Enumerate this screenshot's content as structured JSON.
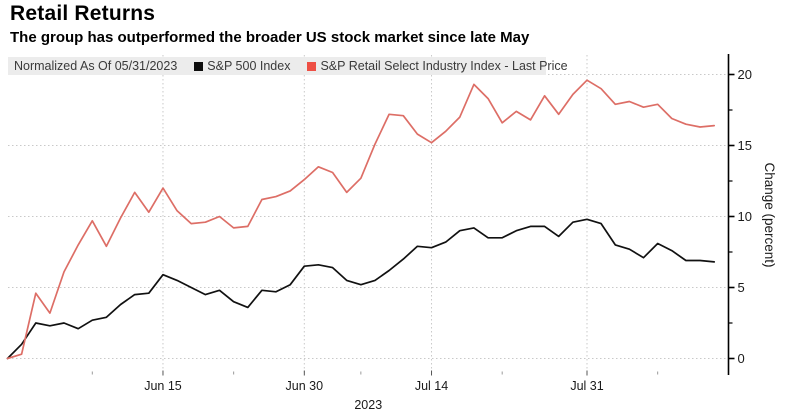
{
  "chart_data": {
    "type": "line",
    "title": "Retail Returns",
    "subtitle": "The group has outperformed the broader US stock market since late May",
    "legend_note": "Normalized As Of 05/31/2023",
    "legend_position": "top",
    "grid": "dotted",
    "xlabel": "2023",
    "ylabel": "Change (percent)",
    "ylim": [
      -1.2,
      21.5
    ],
    "y_ticks": [
      0,
      5,
      10,
      15,
      20
    ],
    "y_minor_ticks": [
      2.5,
      7.5,
      12.5,
      17.5
    ],
    "x": [
      "05/31",
      "06/01",
      "06/02",
      "06/05",
      "06/06",
      "06/07",
      "06/08",
      "06/09",
      "06/12",
      "06/13",
      "06/14",
      "06/15",
      "06/16",
      "06/20",
      "06/21",
      "06/22",
      "06/23",
      "06/26",
      "06/27",
      "06/28",
      "06/29",
      "06/30",
      "07/03",
      "07/05",
      "07/06",
      "07/07",
      "07/10",
      "07/11",
      "07/12",
      "07/13",
      "07/14",
      "07/17",
      "07/18",
      "07/19",
      "07/20",
      "07/21",
      "07/24",
      "07/25",
      "07/26",
      "07/27",
      "07/28",
      "07/31",
      "08/01",
      "08/02",
      "08/03",
      "08/04",
      "08/07",
      "08/08",
      "08/09",
      "08/10",
      "08/11"
    ],
    "x_ticks": [
      {
        "label": "Jun 15",
        "index": 11
      },
      {
        "label": "Jun 30",
        "index": 21
      },
      {
        "label": "Jul 14",
        "index": 30
      },
      {
        "label": "Jul 31",
        "index": 41
      }
    ],
    "x_minor_tick_indices": [
      6,
      16,
      25,
      35,
      46
    ],
    "series": [
      {
        "name": "S&P 500 Index",
        "swatch_color": "#0d0d0d",
        "line_color": "#111111",
        "values": [
          0.0,
          1.0,
          2.5,
          2.3,
          2.5,
          2.1,
          2.7,
          2.9,
          3.8,
          4.5,
          4.6,
          5.9,
          5.5,
          5.0,
          4.5,
          4.8,
          4.0,
          3.6,
          4.8,
          4.7,
          5.2,
          6.5,
          6.6,
          6.4,
          5.5,
          5.2,
          5.5,
          6.2,
          7.0,
          7.9,
          7.8,
          8.2,
          9.0,
          9.2,
          8.5,
          8.5,
          9.0,
          9.3,
          9.3,
          8.6,
          9.6,
          9.8,
          9.5,
          8.0,
          7.7,
          7.1,
          8.1,
          7.6,
          6.9,
          6.9,
          6.8
        ]
      },
      {
        "name": "S&P Retail Select Industry Index - Last Price",
        "swatch_color": "#ee4f44",
        "line_color": "#dd6e66",
        "values": [
          0.0,
          0.3,
          4.6,
          3.2,
          6.1,
          8.0,
          9.7,
          7.9,
          9.9,
          11.7,
          10.3,
          12.0,
          10.4,
          9.5,
          9.6,
          10.0,
          9.2,
          9.3,
          11.2,
          11.4,
          11.8,
          12.6,
          13.5,
          13.1,
          11.7,
          12.7,
          15.1,
          17.2,
          17.1,
          15.8,
          15.2,
          16.0,
          17.0,
          19.3,
          18.3,
          16.6,
          17.4,
          16.8,
          18.5,
          17.2,
          18.6,
          19.6,
          19.0,
          17.9,
          18.1,
          17.7,
          17.9,
          16.9,
          16.5,
          16.3,
          16.4
        ]
      }
    ]
  },
  "styles": {
    "background": "#ffffff",
    "grid_color": "#c9c9c9",
    "axis_color": "#000000",
    "tick_label_color": "#1a1a1a",
    "minor_tick_color": "#9a9a9a",
    "legend_bg": "#ececec",
    "legend_text": "#3a3a3a"
  }
}
